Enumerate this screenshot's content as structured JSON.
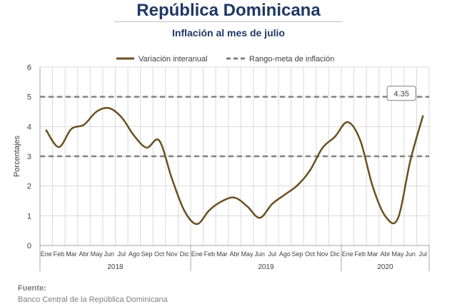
{
  "header": {
    "title": "República Dominicana",
    "subtitle": "Inflación al mes de julio"
  },
  "footer": {
    "label": "Fuente:",
    "source": "Banco Central de la República Dominicana"
  },
  "colors": {
    "series": "#6b5020",
    "target": "#808080",
    "grid": "#d9d9d9",
    "text": "#1f3864"
  },
  "chart_data": {
    "type": "line",
    "title": "",
    "xlabel": "",
    "ylabel": "Porcentajes",
    "ylim": [
      0,
      6
    ],
    "yticks": [
      0,
      1,
      2,
      3,
      4,
      5,
      6
    ],
    "grid": true,
    "legend_position": "top",
    "categories": [
      "Ene",
      "Feb",
      "Mar",
      "Abr",
      "May",
      "Jun",
      "Jul",
      "Ago",
      "Sep",
      "Oct",
      "Nov",
      "Dic",
      "Ene",
      "Feb",
      "Mar",
      "Abr",
      "May",
      "Jun",
      "Jul",
      "Ago",
      "Sep",
      "Oct",
      "Nov",
      "Dic",
      "Ene",
      "Feb",
      "Mar",
      "Abr",
      "May",
      "Jun",
      "Jul"
    ],
    "year_groups": [
      {
        "label": "2018",
        "count": 12
      },
      {
        "label": "2019",
        "count": 12
      },
      {
        "label": "2020",
        "count": 7
      }
    ],
    "series": [
      {
        "name": "Variación interanual",
        "style": "solid",
        "values": [
          3.87,
          3.31,
          3.92,
          4.06,
          4.5,
          4.62,
          4.31,
          3.69,
          3.29,
          3.53,
          2.26,
          1.17,
          0.72,
          1.19,
          1.49,
          1.61,
          1.32,
          0.93,
          1.4,
          1.71,
          2.02,
          2.52,
          3.28,
          3.66,
          4.15,
          3.55,
          1.99,
          0.99,
          0.9,
          2.85,
          4.35
        ]
      },
      {
        "name": "Rango-meta de inflación",
        "style": "dashed",
        "upper": 5,
        "lower": 3
      }
    ],
    "annotations": [
      {
        "text": "4.35",
        "index": 30,
        "value": 4.35
      }
    ]
  }
}
